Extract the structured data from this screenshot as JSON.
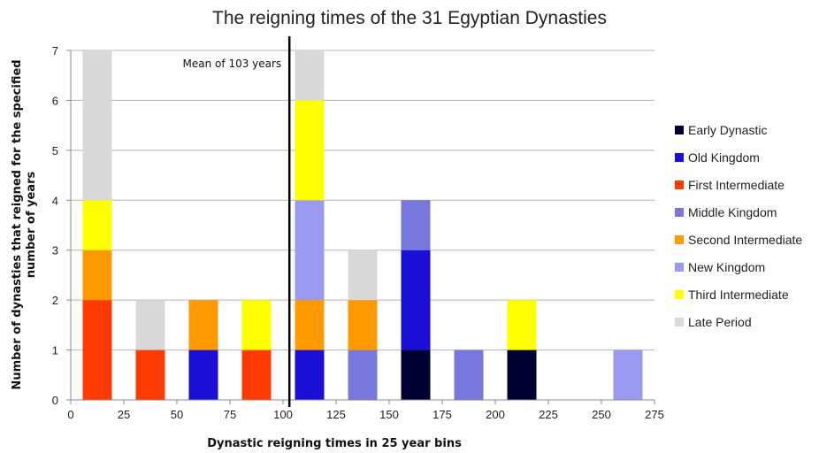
{
  "chart_data": {
    "type": "bar",
    "stacked": true,
    "title": "The reigning times of the 31 Egyptian Dynasties",
    "xlabel": "Dynastic reigning times in 25 year bins",
    "ylabel_lines": [
      "Number of dynasties  that reigned for the specified",
      "number of years"
    ],
    "xlim": [
      0,
      275
    ],
    "ylim": [
      0,
      7
    ],
    "x_ticks": [
      0,
      25,
      50,
      75,
      100,
      125,
      150,
      175,
      200,
      225,
      250,
      275
    ],
    "y_ticks": [
      0,
      1,
      2,
      3,
      4,
      5,
      6,
      7
    ],
    "grid": "horizontal",
    "legend_position": "right",
    "bin_width": 25,
    "bin_centers": [
      12.5,
      37.5,
      62.5,
      87.5,
      112.5,
      137.5,
      162.5,
      187.5,
      212.5,
      237.5,
      262.5
    ],
    "series": [
      {
        "name": "Early Dynastic",
        "color": "#000033",
        "values": [
          0,
          0,
          0,
          0,
          0,
          0,
          1,
          0,
          1,
          0,
          0
        ]
      },
      {
        "name": "Old Kingdom",
        "color": "#1a0fd6",
        "values": [
          0,
          0,
          1,
          0,
          1,
          0,
          2,
          0,
          0,
          0,
          0
        ]
      },
      {
        "name": "First Intermediate",
        "color": "#ff3a00",
        "values": [
          2,
          1,
          0,
          1,
          0,
          0,
          0,
          0,
          0,
          0,
          0
        ]
      },
      {
        "name": "Middle Kingdom",
        "color": "#7777dd",
        "values": [
          0,
          0,
          0,
          0,
          0,
          1,
          1,
          1,
          0,
          0,
          0
        ]
      },
      {
        "name": "Second Intermediate",
        "color": "#ff9900",
        "values": [
          1,
          0,
          1,
          0,
          1,
          1,
          0,
          0,
          0,
          0,
          0
        ]
      },
      {
        "name": "New Kingdom",
        "color": "#9a9af2",
        "values": [
          0,
          0,
          0,
          0,
          2,
          0,
          0,
          0,
          0,
          0,
          1
        ]
      },
      {
        "name": "Third Intermediate",
        "color": "#ffff00",
        "values": [
          1,
          0,
          0,
          1,
          2,
          0,
          0,
          0,
          1,
          0,
          0
        ]
      },
      {
        "name": "Late Period",
        "color": "#d8d8d8",
        "values": [
          3,
          1,
          0,
          0,
          1,
          1,
          0,
          0,
          0,
          0,
          0
        ]
      }
    ],
    "annotation": {
      "text": "Mean of 103 years",
      "x": 103
    }
  }
}
